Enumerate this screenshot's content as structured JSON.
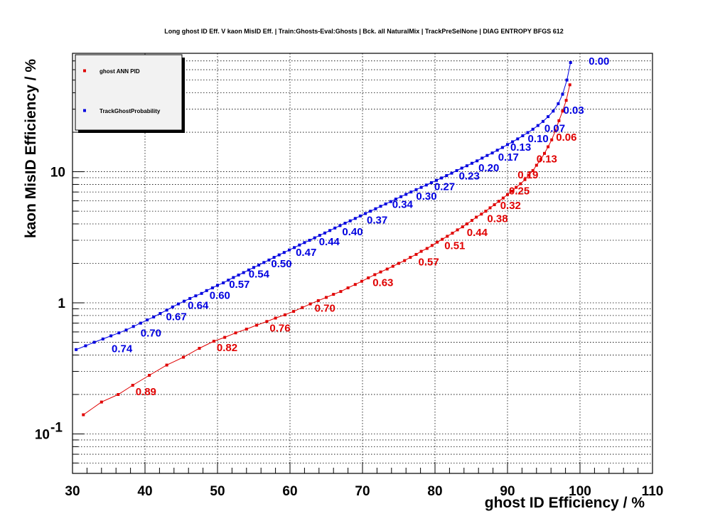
{
  "chart_data": {
    "type": "line",
    "title": "Long ghost ID Eff. V kaon MisID Eff. | Train:Ghosts-Eval:Ghosts | Bck. all NaturalMix | TrackPreSelNone | DIAG ENTROPY BFGS 612",
    "xlabel": "ghost ID Efficiency / %",
    "ylabel": "kaon MisID Efficiency / %",
    "xlim": [
      30,
      110
    ],
    "ylim": [
      0.05,
      80
    ],
    "yscale": "log",
    "grid": true,
    "legend_position": "top-left",
    "x_ticks": [
      "30",
      "40",
      "50",
      "60",
      "70",
      "80",
      "90",
      "100",
      "110"
    ],
    "y_ticks": [
      {
        "value": 0.1,
        "label": "10",
        "exp": "-1"
      },
      {
        "value": 1,
        "label": "1",
        "exp": ""
      },
      {
        "value": 10,
        "label": "10",
        "exp": ""
      }
    ],
    "series": [
      {
        "name": "ghost ANN PID",
        "color": "#e00000",
        "x": [
          31.5,
          34,
          36.3,
          38.3,
          40.6,
          43,
          45.3,
          47.5,
          49.5,
          51,
          52.5,
          54,
          55.4,
          56.8,
          58,
          59.3,
          60.5,
          61.7,
          62.8,
          63.9,
          65,
          66,
          67,
          68,
          69,
          69.9,
          70.8,
          71.7,
          72.5,
          73.4,
          74.2,
          75,
          75.8,
          76.6,
          77.4,
          78.1,
          78.9,
          79.6,
          80.3,
          81,
          81.7,
          82.4,
          83.1,
          83.8,
          84.4,
          85.1,
          85.7,
          86.4,
          87,
          87.6,
          88.2,
          88.8,
          89.4,
          90,
          90.6,
          91.2,
          91.8,
          92.4,
          92.9,
          93.5,
          94,
          94.6,
          95.1,
          95.6,
          96.1,
          96.6,
          97.1,
          97.6,
          98.1,
          98.6
        ],
        "y": [
          0.14,
          0.175,
          0.2,
          0.235,
          0.28,
          0.335,
          0.385,
          0.45,
          0.51,
          0.545,
          0.59,
          0.63,
          0.675,
          0.72,
          0.765,
          0.81,
          0.86,
          0.92,
          0.98,
          1.04,
          1.1,
          1.16,
          1.22,
          1.3,
          1.38,
          1.46,
          1.55,
          1.64,
          1.72,
          1.81,
          1.9,
          2.0,
          2.1,
          2.22,
          2.34,
          2.47,
          2.6,
          2.74,
          2.9,
          3.05,
          3.22,
          3.4,
          3.6,
          3.8,
          4.0,
          4.25,
          4.5,
          4.75,
          5.0,
          5.3,
          5.6,
          5.95,
          6.3,
          6.7,
          7.1,
          7.6,
          8.1,
          8.7,
          9.4,
          10.2,
          11.2,
          12.4,
          13.8,
          15.5,
          17.5,
          20.5,
          24.5,
          29,
          35,
          46
        ],
        "labels": [
          {
            "text": "0.89",
            "x": 38.3,
            "y": 0.235
          },
          {
            "text": "0.82",
            "x": 49.5,
            "y": 0.51
          },
          {
            "text": "0.76",
            "x": 56.8,
            "y": 0.72
          },
          {
            "text": "0.70",
            "x": 63.0,
            "y": 1.02
          },
          {
            "text": "0.63",
            "x": 71.0,
            "y": 1.6
          },
          {
            "text": "0.57",
            "x": 77.3,
            "y": 2.3
          },
          {
            "text": "0.51",
            "x": 80.9,
            "y": 3.05
          },
          {
            "text": "0.44",
            "x": 84.0,
            "y": 3.85
          },
          {
            "text": "0.38",
            "x": 86.8,
            "y": 4.9
          },
          {
            "text": "0.32",
            "x": 88.6,
            "y": 6.2
          },
          {
            "text": "0.25",
            "x": 89.8,
            "y": 8.0
          },
          {
            "text": "0.19",
            "x": 91.0,
            "y": 10.6
          },
          {
            "text": "0.13",
            "x": 93.6,
            "y": 14.0
          },
          {
            "text": "0.06",
            "x": 96.3,
            "y": 20.5
          }
        ]
      },
      {
        "name": "TrackGhostProbability",
        "color": "#0000e0",
        "x": [
          30.5,
          31.8,
          33,
          34.2,
          35.3,
          36.4,
          37.4,
          38.4,
          39.4,
          40.3,
          41.2,
          42.1,
          43,
          43.8,
          44.6,
          45.4,
          46.2,
          47,
          47.8,
          48.5,
          49.3,
          50,
          50.8,
          51.5,
          52.2,
          52.9,
          53.6,
          54.3,
          55,
          55.7,
          56.4,
          57.1,
          57.8,
          58.5,
          59.2,
          59.9,
          60.6,
          61.3,
          62,
          62.7,
          63.4,
          64.1,
          64.8,
          65.5,
          66.2,
          66.9,
          67.6,
          68.3,
          69,
          69.7,
          70.4,
          71.1,
          71.8,
          72.5,
          73.2,
          73.9,
          74.6,
          75.3,
          76,
          76.7,
          77.4,
          78.1,
          78.8,
          79.5,
          80.2,
          80.9,
          81.6,
          82.3,
          83,
          83.7,
          84.4,
          85.1,
          85.8,
          86.5,
          87.2,
          87.9,
          88.6,
          89.3,
          90,
          90.7,
          91.4,
          92.1,
          92.8,
          93.5,
          94.2,
          94.9,
          95.6,
          96.3,
          97,
          97.6,
          98.2,
          98.7
        ],
        "y": [
          0.44,
          0.47,
          0.5,
          0.53,
          0.56,
          0.59,
          0.62,
          0.66,
          0.7,
          0.74,
          0.78,
          0.83,
          0.88,
          0.93,
          0.98,
          1.03,
          1.08,
          1.13,
          1.18,
          1.24,
          1.3,
          1.36,
          1.42,
          1.49,
          1.56,
          1.63,
          1.7,
          1.78,
          1.86,
          1.94,
          2.03,
          2.12,
          2.22,
          2.32,
          2.42,
          2.53,
          2.64,
          2.76,
          2.88,
          3.0,
          3.13,
          3.27,
          3.41,
          3.56,
          3.72,
          3.88,
          4.05,
          4.22,
          4.4,
          4.6,
          4.8,
          5.0,
          5.22,
          5.45,
          5.68,
          5.92,
          6.18,
          6.45,
          6.72,
          7.0,
          7.3,
          7.6,
          7.92,
          8.25,
          8.6,
          8.96,
          9.35,
          9.75,
          10.2,
          10.65,
          11.1,
          11.6,
          12.1,
          12.7,
          13.3,
          13.9,
          14.6,
          15.3,
          16.1,
          16.9,
          17.8,
          18.8,
          19.9,
          21.1,
          22.5,
          24.2,
          26.3,
          29,
          33,
          39,
          50,
          68
        ],
        "labels": [
          {
            "text": "0.74",
            "x": 35.0,
            "y": 0.5
          },
          {
            "text": "0.70",
            "x": 39.0,
            "y": 0.66
          },
          {
            "text": "0.67",
            "x": 42.5,
            "y": 0.88
          },
          {
            "text": "0.64",
            "x": 45.5,
            "y": 1.07
          },
          {
            "text": "0.60",
            "x": 48.5,
            "y": 1.28
          },
          {
            "text": "0.57",
            "x": 51.2,
            "y": 1.55
          },
          {
            "text": "0.54",
            "x": 53.9,
            "y": 1.85
          },
          {
            "text": "0.50",
            "x": 57.0,
            "y": 2.23
          },
          {
            "text": "0.47",
            "x": 60.4,
            "y": 2.72
          },
          {
            "text": "0.44",
            "x": 63.6,
            "y": 3.28
          },
          {
            "text": "0.40",
            "x": 66.8,
            "y": 3.9
          },
          {
            "text": "0.37",
            "x": 70.2,
            "y": 4.8
          },
          {
            "text": "0.34",
            "x": 73.7,
            "y": 6.3
          },
          {
            "text": "0.30",
            "x": 77.0,
            "y": 7.3
          },
          {
            "text": "0.27",
            "x": 79.5,
            "y": 8.6
          },
          {
            "text": "0.23",
            "x": 82.9,
            "y": 10.4
          },
          {
            "text": "0.20",
            "x": 85.6,
            "y": 12.0
          },
          {
            "text": "0.17",
            "x": 88.3,
            "y": 14.5
          },
          {
            "text": "0.13",
            "x": 90.0,
            "y": 17.2
          },
          {
            "text": "0.10",
            "x": 92.4,
            "y": 20.0
          },
          {
            "text": "0.07",
            "x": 94.7,
            "y": 24.0
          },
          {
            "text": "0.03",
            "x": 97.3,
            "y": 33.0
          },
          {
            "text": "0.00",
            "x": 100.8,
            "y": 78.0
          }
        ]
      }
    ]
  }
}
